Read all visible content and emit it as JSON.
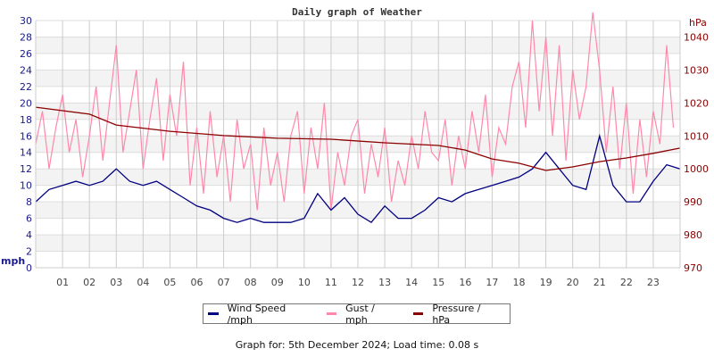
{
  "chart_data": {
    "type": "line",
    "title": "Daily graph of Weather",
    "x_ticks": [
      "01",
      "02",
      "03",
      "04",
      "05",
      "06",
      "07",
      "08",
      "09",
      "10",
      "11",
      "12",
      "13",
      "14",
      "15",
      "16",
      "17",
      "18",
      "19",
      "20",
      "21",
      "22",
      "23"
    ],
    "xlim": [
      0,
      24
    ],
    "left_axis": {
      "label": "mph",
      "ylim": [
        0,
        30
      ],
      "ticks": [
        0,
        2,
        4,
        6,
        8,
        10,
        12,
        14,
        16,
        18,
        20,
        22,
        24,
        26,
        28,
        30
      ],
      "color": "#1a1a8c"
    },
    "right_axis": {
      "label": "hPa",
      "ylim": [
        970,
        1045
      ],
      "ticks": [
        970,
        980,
        990,
        1000,
        1010,
        1020,
        1030,
        1040
      ],
      "color": "#8b0000"
    },
    "grid": true,
    "legend_placement": "bottom",
    "series": [
      {
        "name": "Wind Speed /mph",
        "axis": "left",
        "color": "#000080",
        "x_step_hours": 0.5,
        "values": [
          8,
          9.5,
          10,
          10.5,
          10,
          10.5,
          12,
          10.5,
          10,
          10.5,
          9.5,
          8.5,
          7.5,
          7,
          6,
          5.5,
          6,
          5.5,
          5.5,
          5.5,
          6,
          9,
          7,
          8.5,
          6.5,
          5.5,
          7.5,
          6,
          6,
          7,
          8.5,
          8,
          9,
          9.5,
          10,
          10.5,
          11,
          12,
          14,
          12,
          10,
          9.5,
          16,
          10,
          8,
          8,
          10.5,
          12.5,
          12
        ]
      },
      {
        "name": "Gust / mph",
        "axis": "left",
        "color": "#ff88aa",
        "x_step_hours": 0.25,
        "values": [
          15,
          19,
          12,
          17,
          21,
          14,
          18,
          11,
          16,
          22,
          13,
          20,
          27,
          14,
          19,
          24,
          12,
          18,
          23,
          13,
          21,
          16,
          25,
          10,
          17,
          9,
          19,
          11,
          16,
          8,
          18,
          12,
          15,
          7,
          17,
          10,
          14,
          8,
          16,
          19,
          9,
          17,
          12,
          20,
          7,
          14,
          10,
          16,
          18,
          9,
          15,
          11,
          17,
          8,
          13,
          10,
          16,
          12,
          19,
          14,
          13,
          18,
          10,
          16,
          12,
          19,
          14,
          21,
          11,
          17,
          15,
          22,
          25,
          17,
          30,
          19,
          28,
          16,
          27,
          13,
          24,
          18,
          22,
          31,
          24,
          14,
          22,
          12,
          20,
          9,
          18,
          11,
          19,
          15,
          27,
          17
        ]
      },
      {
        "name": "Pressure / hPa",
        "axis": "right",
        "color": "#8b0000",
        "x": [
          0,
          2,
          3,
          5,
          7,
          9,
          11,
          13,
          15,
          16,
          17,
          18,
          19,
          20,
          21,
          22,
          23,
          24
        ],
        "values": [
          1018.7,
          1016.6,
          1013.3,
          1011.4,
          1010.1,
          1009.3,
          1009.0,
          1007.9,
          1007.1,
          1005.7,
          1003.0,
          1001.7,
          999.5,
          1000.6,
          1002.2,
          1003.3,
          1004.7,
          1006.3
        ]
      }
    ]
  },
  "footer": "Graph for: 5th December 2024; Load time: 0.08 s"
}
